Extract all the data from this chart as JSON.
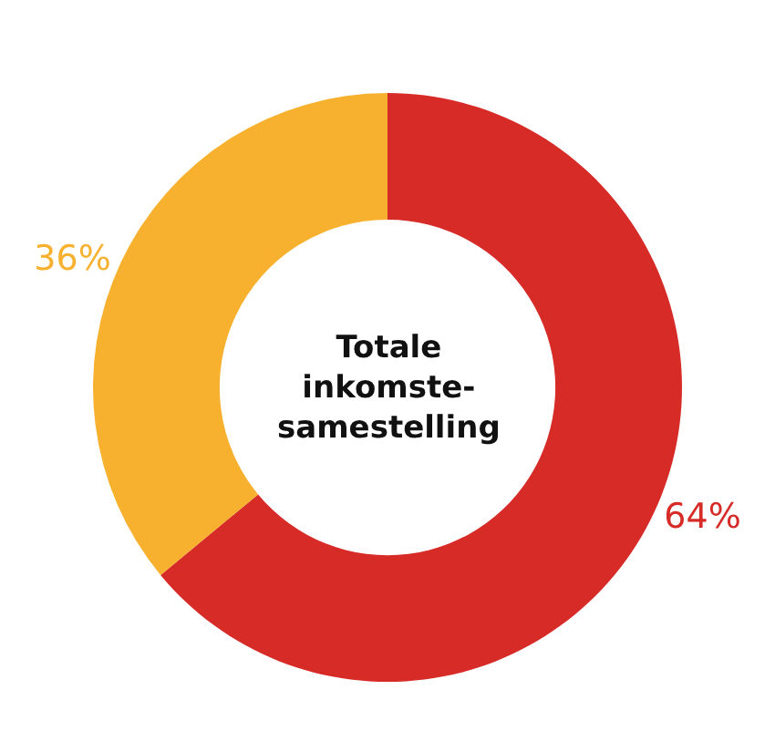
{
  "chart_data": {
    "type": "donut",
    "title": "Totale inkomste-samestelling",
    "categories": [
      null,
      null
    ],
    "values": [
      64,
      36
    ],
    "colors": [
      "#d62b27",
      "#f7b12f"
    ],
    "value_labels": [
      "64%",
      "36%"
    ],
    "legend": false
  }
}
